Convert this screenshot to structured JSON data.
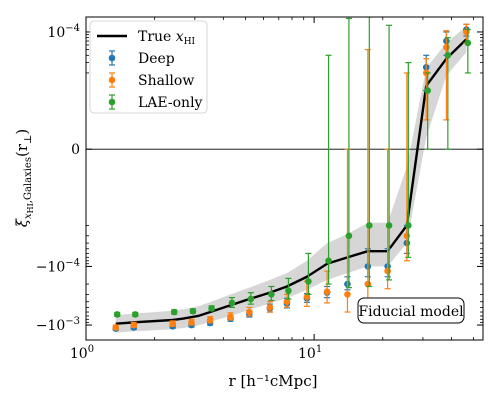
{
  "chart_data": {
    "type": "scatter",
    "xlabel": "r [h⁻¹cMpc]",
    "ylabel": "ξ",
    "ylabel_sub": "x",
    "ylabel_subsub": "HI",
    "ylabel_rest": ",Galaxies",
    "ylabel_arg": "(r",
    "ylabel_arg_sub": "⊥",
    "ylabel_close": ")",
    "x_scale": "log",
    "y_scale": "symlog",
    "xlim": [
      1.0,
      55.0
    ],
    "ylim": [
      -0.0018,
      0.00018
    ],
    "symlog_linthresh": 1e-05,
    "x_ticks": [
      {
        "value": 1,
        "base": "10",
        "exp": "0"
      },
      {
        "value": 10,
        "base": "10",
        "exp": "1"
      }
    ],
    "y_ticks": [
      {
        "value": -0.001,
        "base": "−10",
        "exp": "−3"
      },
      {
        "value": -0.0001,
        "base": "−10",
        "exp": "−4"
      },
      {
        "value": 0,
        "base": "0",
        "exp": ""
      },
      {
        "value": 0.0001,
        "base": "10",
        "exp": "−4"
      }
    ],
    "zero_line": true,
    "grid": false,
    "annotation": "Fiducial model",
    "legend": {
      "position": "top-left",
      "entries": [
        {
          "label_main": "True x",
          "label_sub": "HI",
          "kind": "line",
          "color": "#000000"
        },
        {
          "label_main": "Deep",
          "label_sub": "",
          "kind": "errorbar",
          "color": "#1f77b4"
        },
        {
          "label_main": "Shallow",
          "label_sub": "",
          "kind": "errorbar",
          "color": "#ff7f0e"
        },
        {
          "label_main": "LAE-only",
          "label_sub": "",
          "kind": "errorbar",
          "color": "#2ca02c"
        }
      ]
    },
    "true_line": {
      "name": "True x_HI",
      "color": "#000000",
      "x": [
        1.35,
        1.62,
        2.4,
        2.65,
        3.1,
        3.6,
        4.3,
        5.2,
        6.4,
        7.6,
        9.3,
        11.4,
        14.0,
        17.2,
        21.0,
        25.5,
        31.0,
        38.0,
        46.5
      ],
      "y": [
        -0.00095,
        -0.0009,
        -0.00082,
        -0.00078,
        -0.0007,
        -0.00058,
        -0.00046,
        -0.00036,
        -0.00028,
        -0.00022,
        -0.00015,
        -9e-05,
        -7e-05,
        -5.5e-05,
        -5.5e-05,
        -2e-05,
        1.2e-05,
        3.5e-05,
        7.5e-05
      ],
      "band_lower": [
        -0.00135,
        -0.00128,
        -0.00118,
        -0.00113,
        -0.00102,
        -0.00085,
        -0.0007,
        -0.00055,
        -0.00043,
        -0.00035,
        -0.00025,
        -0.00017,
        -0.00013,
        -0.0001,
        -0.0001,
        -4e-05,
        2e-06,
        1.8e-05,
        4.5e-05
      ],
      "band_upper": [
        -0.00068,
        -0.00064,
        -0.00057,
        -0.00054,
        -0.00048,
        -0.00039,
        -0.0003,
        -0.00023,
        -0.00017,
        -0.00013,
        -8e-05,
        -4e-05,
        -2.8e-05,
        -1.8e-05,
        -1.8e-05,
        -3e-06,
        2.4e-05,
        6.5e-05,
        0.000125
      ]
    },
    "series": [
      {
        "name": "Deep",
        "color": "#1f77b4",
        "x": [
          1.35,
          1.62,
          2.4,
          2.9,
          3.5,
          4.3,
          5.2,
          6.4,
          7.6,
          9.3,
          11.4,
          14.0,
          17.2,
          21.0,
          25.5,
          31.0,
          38.0,
          46.5
        ],
        "y": [
          -0.00115,
          -0.0011,
          -0.00105,
          -0.001,
          -0.00092,
          -0.00078,
          -0.00065,
          -0.00052,
          -0.00043,
          -0.00035,
          -0.00028,
          -0.0002,
          -0.0001,
          -0.0001,
          -4e-05,
          2.5e-05,
          7e-05,
          0.00011
        ],
        "err": [
          8e-05,
          8e-05,
          8e-05,
          8e-05,
          8e-05,
          8e-05,
          8e-05,
          8e-05,
          8e-05,
          6e-05,
          6e-05,
          5e-05,
          5e-05,
          5e-05,
          2e-05,
          1.5e-05,
          3e-05,
          2.5e-05
        ]
      },
      {
        "name": "Shallow",
        "color": "#ff7f0e",
        "x": [
          1.35,
          1.62,
          2.4,
          2.9,
          3.5,
          4.3,
          5.2,
          6.4,
          7.6,
          9.3,
          11.4,
          14.0,
          17.2,
          21.0,
          25.5,
          31.0,
          38.0,
          46.5
        ],
        "y": [
          -0.0011,
          -0.001,
          -0.00095,
          -0.0009,
          -0.00082,
          -0.00072,
          -0.0006,
          -0.0005,
          -0.0004,
          -0.00033,
          -0.00027,
          -0.0003,
          -0.0002,
          -0.00012,
          -3e-05,
          2e-05,
          5.5e-05,
          0.0001
        ],
        "err": [
          0.0001,
          0.0001,
          0.0001,
          0.0001,
          0.0001,
          0.0001,
          0.0001,
          0.0001,
          0.0001,
          0.00015,
          0.00015,
          0.0003,
          0.00025,
          0.00012,
          5e-05,
          1.5e-05,
          5e-05,
          3.5e-05
        ]
      },
      {
        "name": "LAE-only",
        "color": "#2ca02c",
        "x": [
          1.35,
          1.62,
          2.4,
          2.9,
          3.5,
          4.3,
          5.2,
          6.4,
          7.6,
          9.3,
          11.4,
          14.0,
          17.2,
          21.0,
          25.5,
          31.0,
          38.0,
          46.5
        ],
        "y": [
          -0.00066,
          -0.00066,
          -0.0006,
          -0.00058,
          -0.00052,
          -0.00042,
          -0.00036,
          -0.0003,
          -0.00026,
          -0.00018,
          -8e-05,
          -3e-05,
          -2e-05,
          -2e-05,
          -2e-05,
          1e-05,
          4e-05,
          6.5e-05
        ],
        "err": [
          5e-05,
          5e-05,
          5e-05,
          5e-05,
          5e-05,
          8e-05,
          8e-05,
          8e-05,
          0.0001,
          0.00012,
          0.00012,
          0.0002,
          0.0002,
          0.00015,
          5e-05,
          1e-05,
          4e-05,
          4.5e-05
        ]
      }
    ]
  }
}
